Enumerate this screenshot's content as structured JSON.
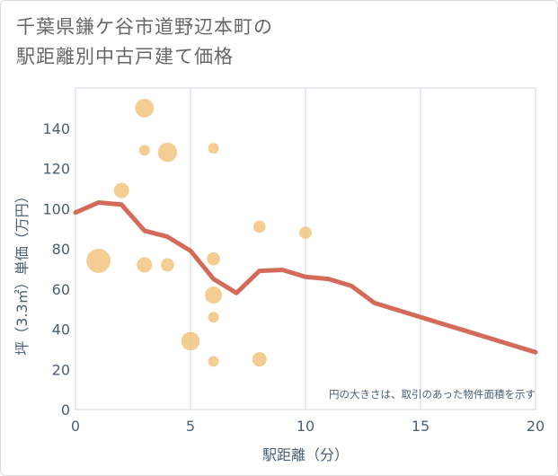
{
  "title_lines": [
    "千葉県鎌ケ谷市道野辺本町の",
    "駅距離別中古戸建て価格"
  ],
  "chart_data": {
    "type": "scatter",
    "title": "千葉県鎌ケ谷市道野辺本町の駅距離別中古戸建て価格",
    "xlabel": "駅距離（分）",
    "ylabel": "坪（3.3㎡）単価（万円）",
    "xlim": [
      0,
      20
    ],
    "ylim": [
      0,
      160
    ],
    "xticks": [
      0,
      5,
      10,
      15,
      20
    ],
    "yticks": [
      0,
      20,
      40,
      60,
      80,
      100,
      120,
      140
    ],
    "grid": true,
    "note": "円の大きさは、取引のあった物件面積を示す",
    "bubble_color": "#f1c47f",
    "line_color": "#d46b5a",
    "bubbles": [
      {
        "x": 1,
        "y": 74,
        "size": 5
      },
      {
        "x": 2,
        "y": 109,
        "size": 2
      },
      {
        "x": 3,
        "y": 150,
        "size": 3
      },
      {
        "x": 3,
        "y": 129,
        "size": 1
      },
      {
        "x": 3,
        "y": 72,
        "size": 2
      },
      {
        "x": 4,
        "y": 128,
        "size": 3.2
      },
      {
        "x": 4,
        "y": 72,
        "size": 1.5
      },
      {
        "x": 5,
        "y": 34,
        "size": 3
      },
      {
        "x": 6,
        "y": 130,
        "size": 1
      },
      {
        "x": 6,
        "y": 75,
        "size": 1.5
      },
      {
        "x": 6,
        "y": 57,
        "size": 2.5
      },
      {
        "x": 6,
        "y": 46,
        "size": 1
      },
      {
        "x": 6,
        "y": 24,
        "size": 1
      },
      {
        "x": 8,
        "y": 91,
        "size": 1.3
      },
      {
        "x": 8,
        "y": 25,
        "size": 1.8
      },
      {
        "x": 10,
        "y": 88,
        "size": 1.3
      }
    ],
    "trend": {
      "x": [
        0,
        1,
        2,
        3,
        4,
        5,
        6,
        7,
        8,
        9,
        10,
        11,
        12,
        13,
        20
      ],
      "y": [
        98,
        103,
        102,
        89,
        86,
        79,
        65,
        58,
        69,
        69.5,
        66,
        65,
        61.5,
        53,
        28.5
      ]
    }
  }
}
